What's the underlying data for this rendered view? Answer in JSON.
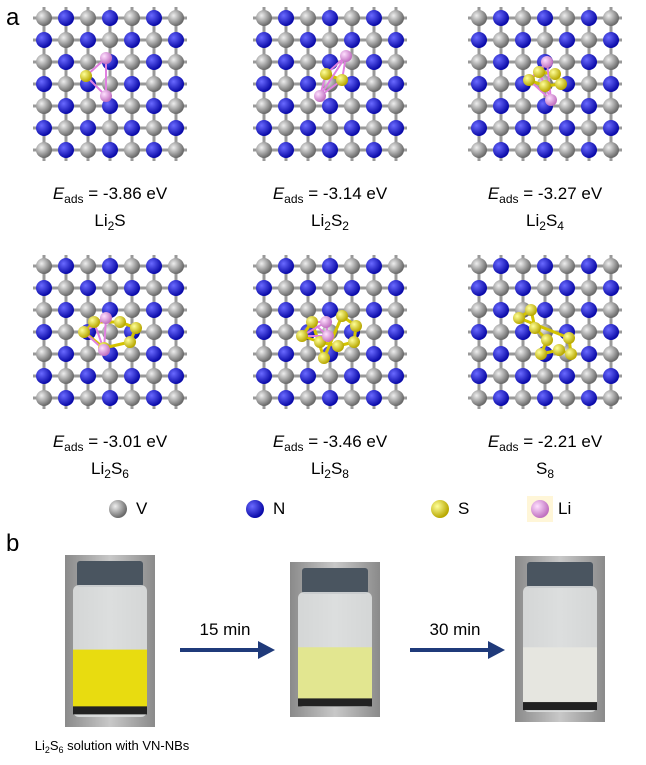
{
  "labels": {
    "a": "a",
    "b": "b"
  },
  "panels": [
    {
      "energy": {
        "symbol": "E",
        "sub": "ads",
        "value": " = -3.86 eV"
      },
      "formula": [
        {
          "text": "Li"
        },
        {
          "sub": "2"
        },
        {
          "text": "S"
        }
      ]
    },
    {
      "energy": {
        "symbol": "E",
        "sub": "ads",
        "value": " = -3.14 eV"
      },
      "formula": [
        {
          "text": "Li"
        },
        {
          "sub": "2"
        },
        {
          "text": "S"
        },
        {
          "sub": "2"
        }
      ]
    },
    {
      "energy": {
        "symbol": "E",
        "sub": "ads",
        "value": " = -3.27 eV"
      },
      "formula": [
        {
          "text": "Li"
        },
        {
          "sub": "2"
        },
        {
          "text": "S"
        },
        {
          "sub": "4"
        }
      ]
    },
    {
      "energy": {
        "symbol": "E",
        "sub": "ads",
        "value": " = -3.01 eV"
      },
      "formula": [
        {
          "text": "Li"
        },
        {
          "sub": "2"
        },
        {
          "text": "S"
        },
        {
          "sub": "6"
        }
      ]
    },
    {
      "energy": {
        "symbol": "E",
        "sub": "ads",
        "value": " = -3.46 eV"
      },
      "formula": [
        {
          "text": "Li"
        },
        {
          "sub": "2"
        },
        {
          "text": "S"
        },
        {
          "sub": "8"
        }
      ]
    },
    {
      "energy": {
        "symbol": "E",
        "sub": "ads",
        "value": " = -2.21 eV"
      },
      "formula": [
        {
          "text": "S"
        },
        {
          "sub": "8"
        }
      ]
    }
  ],
  "legend": [
    "V",
    "N",
    "S",
    "Li"
  ],
  "arrows": [
    "15 min",
    "30 min"
  ],
  "caption": [
    {
      "text": "Li"
    },
    {
      "sub": "2"
    },
    {
      "text": "S"
    },
    {
      "sub": "6"
    },
    {
      "text": " solution with VN-NBs"
    }
  ]
}
